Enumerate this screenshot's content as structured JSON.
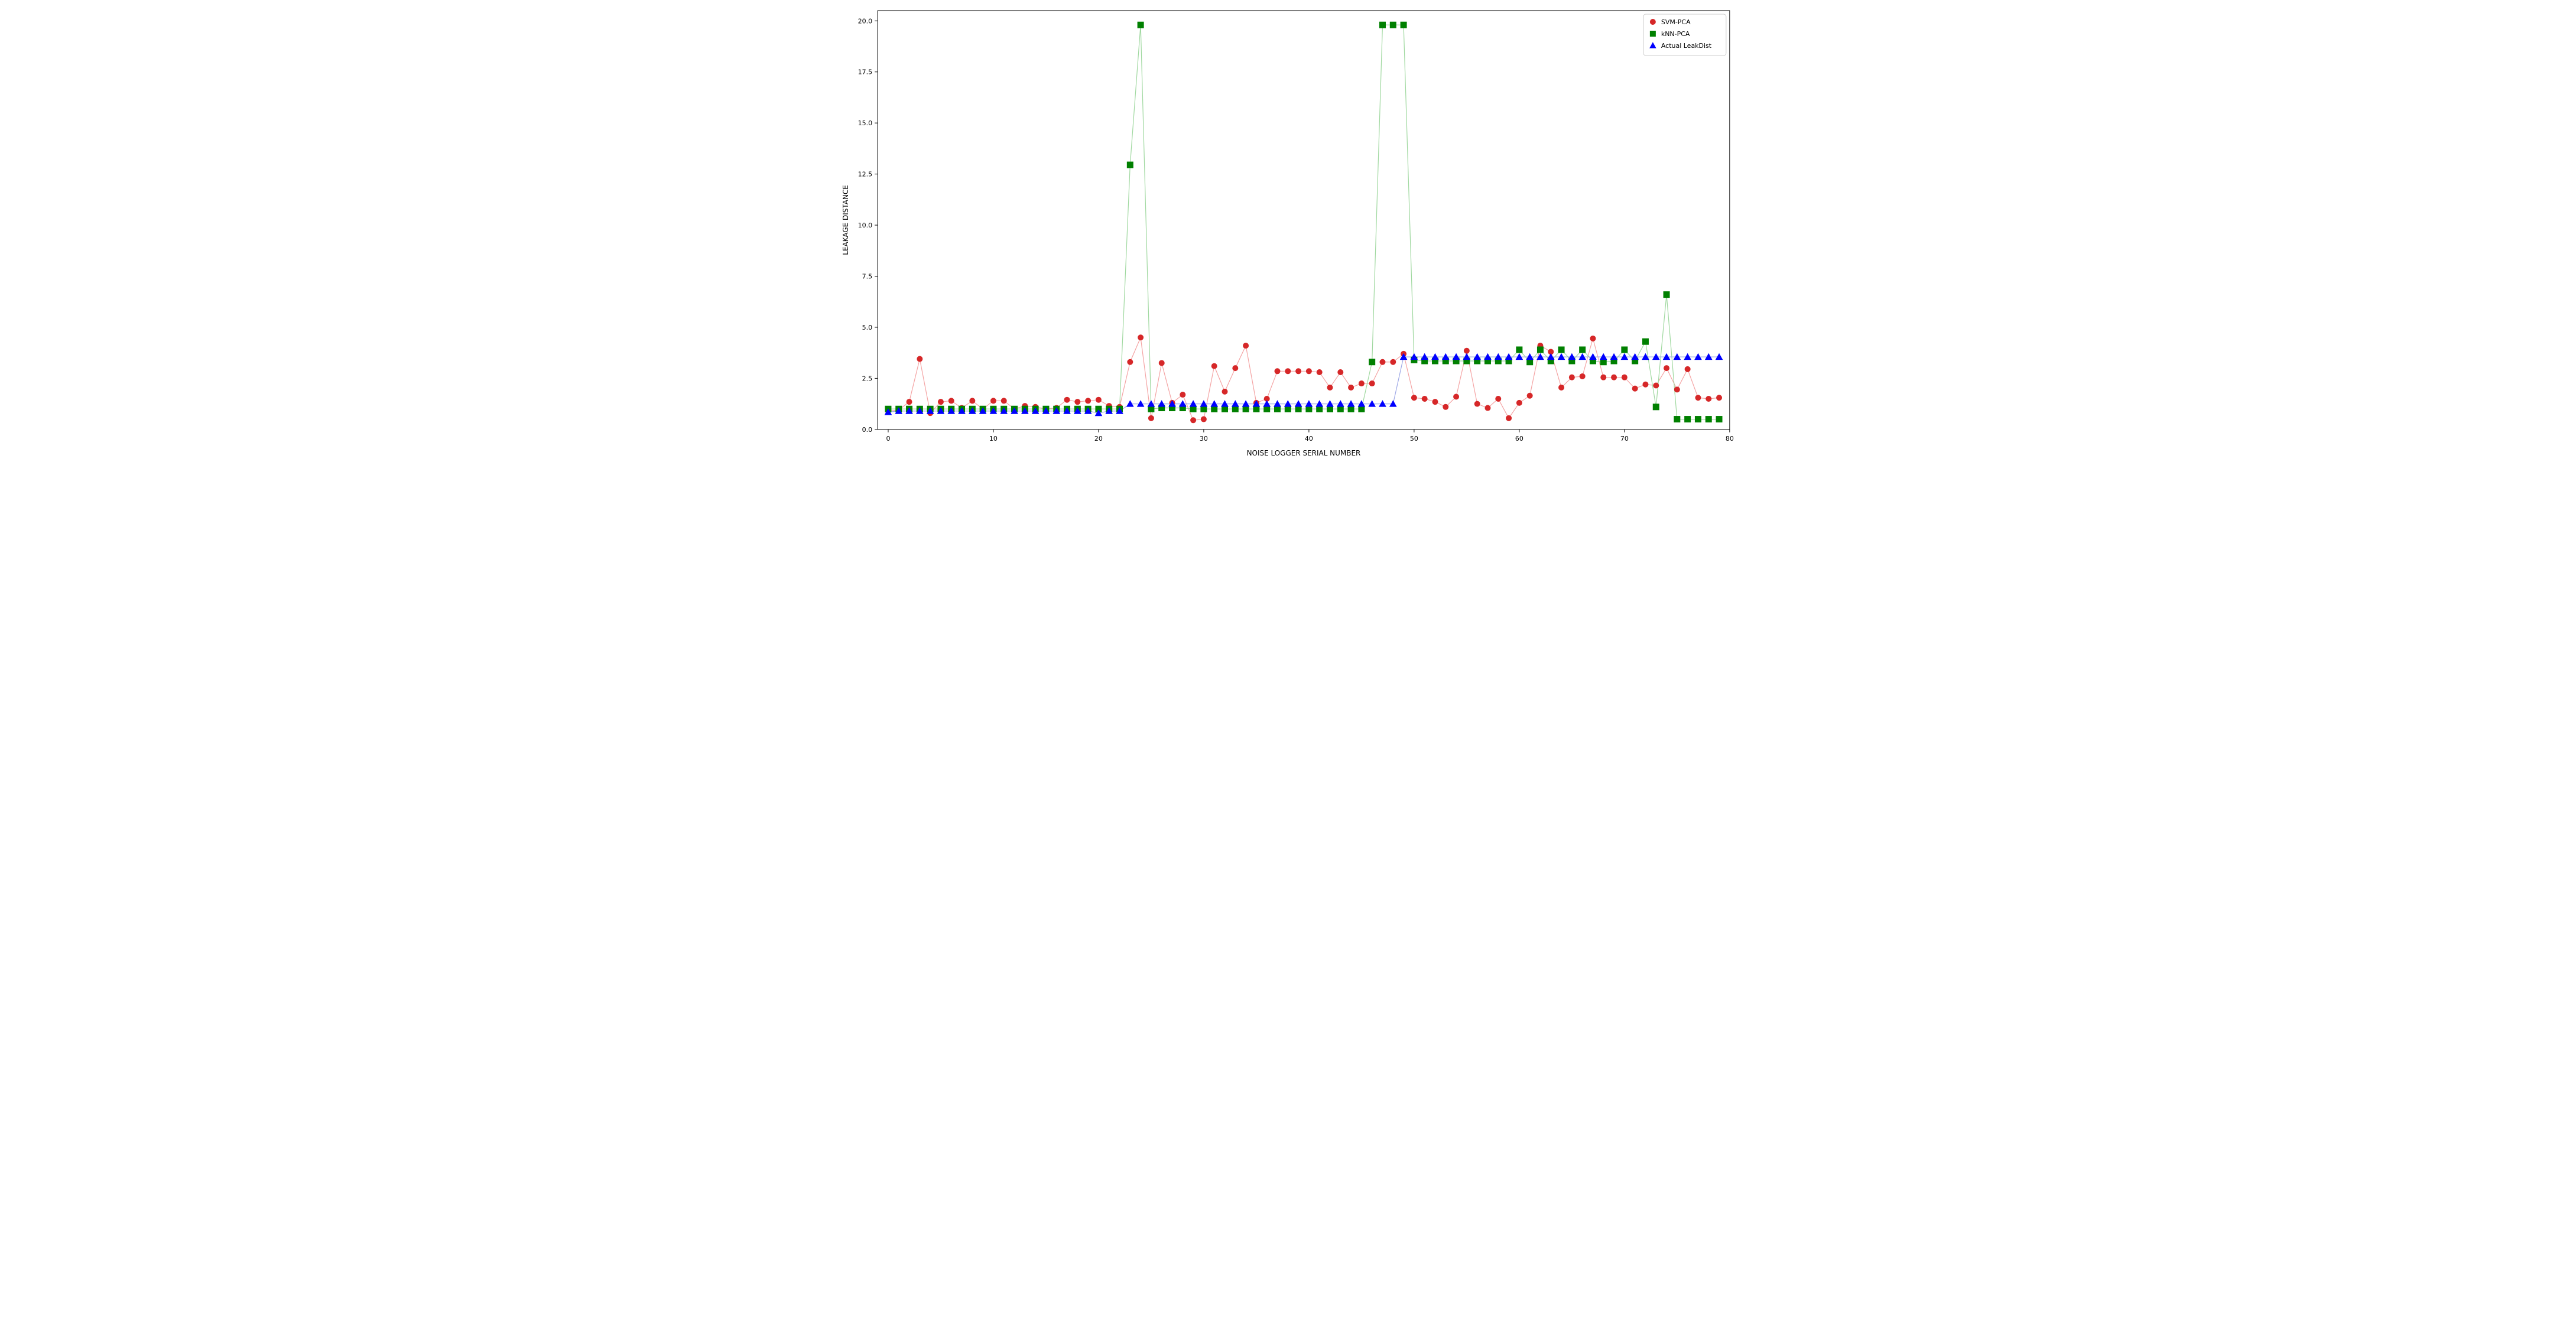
{
  "chart": {
    "type": "line+scatter",
    "background_color": "#ffffff",
    "xlabel": "NOISE LOGGER SERIAL NUMBER",
    "ylabel": "LEAKAGE DISTANCE",
    "label_fontsize": 12,
    "tick_fontsize": 11,
    "xlim": [
      -1,
      80
    ],
    "ylim": [
      0,
      20.5
    ],
    "xtick_step": 10,
    "ytick_step": 2.5,
    "xticks": [
      0,
      10,
      20,
      30,
      40,
      50,
      60,
      70,
      80
    ],
    "yticks": [
      0.0,
      2.5,
      5.0,
      7.5,
      10.0,
      12.5,
      15.0,
      17.5,
      20.0
    ],
    "series": [
      {
        "name": "SVM-PCA",
        "marker": "circle",
        "marker_size": 5,
        "marker_color": "#d62728",
        "line_color": "#f4a3a3",
        "line_width": 1.2,
        "x": [
          0,
          1,
          2,
          3,
          4,
          5,
          6,
          7,
          8,
          9,
          10,
          11,
          12,
          13,
          14,
          15,
          16,
          17,
          18,
          19,
          20,
          21,
          22,
          23,
          24,
          25,
          26,
          27,
          28,
          29,
          30,
          31,
          32,
          33,
          34,
          35,
          36,
          37,
          38,
          39,
          40,
          41,
          42,
          43,
          44,
          45,
          46,
          47,
          48,
          49,
          50,
          51,
          52,
          53,
          54,
          55,
          56,
          57,
          58,
          59,
          60,
          61,
          62,
          63,
          64,
          65,
          66,
          67,
          68,
          69,
          70,
          71,
          72,
          73,
          74,
          75,
          76,
          77,
          78,
          79
        ],
        "y": [
          0.9,
          0.95,
          1.35,
          3.45,
          0.8,
          1.35,
          1.4,
          1.05,
          1.4,
          1.0,
          1.4,
          1.4,
          1.0,
          1.15,
          1.1,
          1.0,
          1.05,
          1.45,
          1.35,
          1.4,
          1.45,
          1.15,
          1.1,
          3.3,
          4.5,
          0.55,
          3.25,
          1.3,
          1.7,
          0.45,
          0.5,
          3.1,
          1.85,
          3.0,
          4.1,
          1.3,
          1.5,
          2.85,
          2.85,
          2.85,
          2.85,
          2.8,
          2.05,
          2.8,
          2.05,
          2.25,
          2.25,
          3.3,
          3.3,
          3.7,
          1.55,
          1.5,
          1.35,
          1.1,
          1.6,
          3.85,
          1.25,
          1.05,
          1.5,
          0.55,
          1.3,
          1.65,
          4.1,
          3.8,
          2.05,
          2.55,
          2.6,
          4.45,
          2.55,
          2.55,
          2.55,
          2.0,
          2.2,
          2.15,
          3.0,
          1.95,
          2.95,
          1.55,
          1.5,
          1.55
        ]
      },
      {
        "name": "kNN-PCA",
        "marker": "square",
        "marker_size": 5.5,
        "marker_color": "#008000",
        "line_color": "#9fd89f",
        "line_width": 1.2,
        "x": [
          0,
          1,
          2,
          3,
          4,
          5,
          6,
          7,
          8,
          9,
          10,
          11,
          12,
          13,
          14,
          15,
          16,
          17,
          18,
          19,
          20,
          21,
          22,
          23,
          24,
          25,
          26,
          27,
          28,
          29,
          30,
          31,
          32,
          33,
          34,
          35,
          36,
          37,
          38,
          39,
          40,
          41,
          42,
          43,
          44,
          45,
          46,
          47,
          48,
          49,
          50,
          51,
          52,
          53,
          54,
          55,
          56,
          57,
          58,
          59,
          60,
          61,
          62,
          63,
          64,
          65,
          66,
          67,
          68,
          69,
          70,
          71,
          72,
          73,
          74,
          75,
          76,
          77,
          78,
          79
        ],
        "y": [
          1.0,
          1.0,
          1.0,
          1.0,
          1.0,
          1.0,
          1.0,
          1.0,
          1.0,
          1.0,
          1.0,
          1.0,
          1.0,
          1.0,
          1.0,
          1.0,
          1.0,
          1.0,
          1.0,
          1.0,
          1.0,
          1.0,
          1.0,
          12.95,
          19.8,
          1.0,
          1.05,
          1.05,
          1.05,
          1.0,
          1.0,
          1.0,
          1.0,
          1.0,
          1.0,
          1.0,
          1.0,
          1.0,
          1.0,
          1.0,
          1.0,
          1.0,
          1.0,
          1.0,
          1.0,
          1.0,
          3.3,
          19.8,
          19.8,
          19.8,
          3.4,
          3.35,
          3.35,
          3.35,
          3.35,
          3.35,
          3.35,
          3.35,
          3.35,
          3.35,
          3.9,
          3.3,
          3.9,
          3.35,
          3.9,
          3.35,
          3.9,
          3.35,
          3.3,
          3.35,
          3.9,
          3.35,
          4.3,
          1.1,
          6.6,
          0.5,
          0.5,
          0.5,
          0.5,
          0.5
        ]
      },
      {
        "name": "Actual LeakDist",
        "marker": "triangle",
        "marker_size": 5.5,
        "marker_color": "#0000ff",
        "line_color": "#9ea8e6",
        "line_width": 1.2,
        "x": [
          0,
          1,
          2,
          3,
          4,
          5,
          6,
          7,
          8,
          9,
          10,
          11,
          12,
          13,
          14,
          15,
          16,
          17,
          18,
          19,
          20,
          21,
          22,
          23,
          24,
          25,
          26,
          27,
          28,
          29,
          30,
          31,
          32,
          33,
          34,
          35,
          36,
          37,
          38,
          39,
          40,
          41,
          42,
          43,
          44,
          45,
          46,
          47,
          48,
          49,
          50,
          51,
          52,
          53,
          54,
          55,
          56,
          57,
          58,
          59,
          60,
          61,
          62,
          63,
          64,
          65,
          66,
          67,
          68,
          69,
          70,
          71,
          72,
          73,
          74,
          75,
          76,
          77,
          78,
          79
        ],
        "y": [
          0.85,
          0.9,
          0.9,
          0.9,
          0.9,
          0.9,
          0.9,
          0.9,
          0.9,
          0.9,
          0.9,
          0.9,
          0.9,
          0.9,
          0.9,
          0.9,
          0.9,
          0.9,
          0.9,
          0.9,
          0.8,
          0.9,
          0.9,
          1.25,
          1.25,
          1.25,
          1.25,
          1.25,
          1.25,
          1.25,
          1.25,
          1.25,
          1.25,
          1.25,
          1.25,
          1.25,
          1.25,
          1.25,
          1.25,
          1.25,
          1.25,
          1.25,
          1.25,
          1.25,
          1.25,
          1.25,
          1.25,
          1.25,
          1.25,
          3.55,
          3.55,
          3.55,
          3.55,
          3.55,
          3.55,
          3.55,
          3.55,
          3.55,
          3.55,
          3.55,
          3.55,
          3.55,
          3.55,
          3.55,
          3.55,
          3.55,
          3.55,
          3.55,
          3.55,
          3.55,
          3.55,
          3.55,
          3.55,
          3.55,
          3.55,
          3.55,
          3.55,
          3.55,
          3.55,
          3.55
        ]
      }
    ],
    "legend": {
      "position": "upper-right",
      "fontsize": 11,
      "items": [
        {
          "label": "SVM-PCA",
          "marker": "circle",
          "color": "#d62728"
        },
        {
          "label": "kNN-PCA",
          "marker": "square",
          "color": "#008000"
        },
        {
          "label": "Actual LeakDist",
          "marker": "triangle",
          "color": "#0000ff"
        }
      ]
    }
  }
}
